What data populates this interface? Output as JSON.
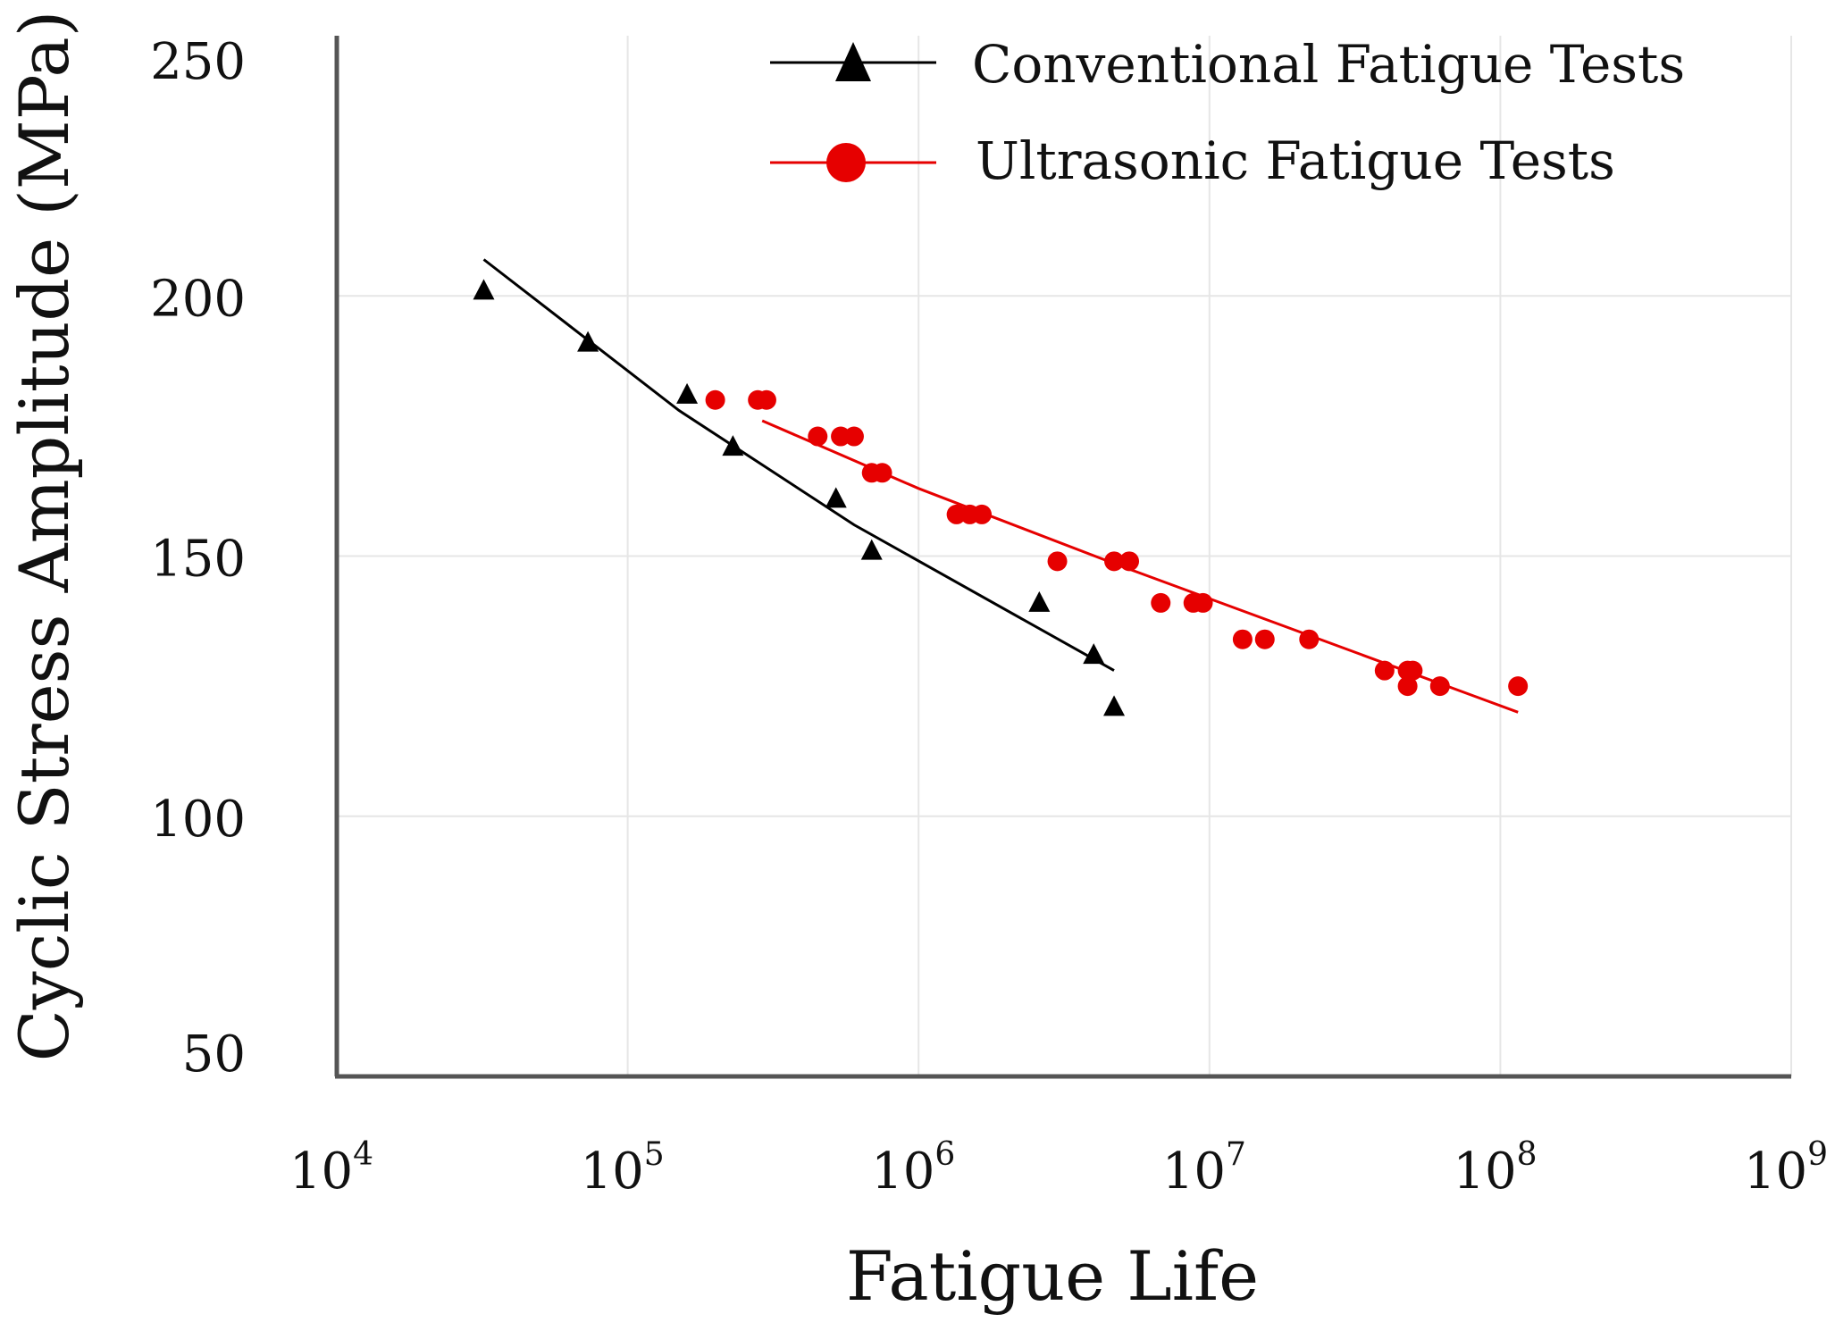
{
  "chart_data": {
    "type": "scatter",
    "title": "",
    "xlabel": "Fatigue Life",
    "ylabel": "Cyclic Stress Amplitude (MPa)",
    "x_scale": "log",
    "xlim": [
      10000,
      1000000000
    ],
    "ylim": [
      50,
      250
    ],
    "grid": true,
    "legend_position": "top-right",
    "x_ticks": [
      {
        "base": "10",
        "exp": "4"
      },
      {
        "base": "10",
        "exp": "5"
      },
      {
        "base": "10",
        "exp": "6"
      },
      {
        "base": "10",
        "exp": "7"
      },
      {
        "base": "10",
        "exp": "8"
      },
      {
        "base": "10",
        "exp": "9"
      }
    ],
    "y_ticks": [
      "50",
      "100",
      "150",
      "200",
      "250"
    ],
    "series": [
      {
        "name": "Conventional Fatigue Tests",
        "marker": "triangle",
        "color": "#000000",
        "points": [
          {
            "x": 32000,
            "y": 201
          },
          {
            "x": 73000,
            "y": 191
          },
          {
            "x": 160000,
            "y": 181
          },
          {
            "x": 230000,
            "y": 171
          },
          {
            "x": 520000,
            "y": 161
          },
          {
            "x": 690000,
            "y": 151
          },
          {
            "x": 2600000,
            "y": 141
          },
          {
            "x": 4000000,
            "y": 131
          },
          {
            "x": 4700000,
            "y": 121
          }
        ],
        "fit": [
          {
            "x": 32000,
            "y": 207
          },
          {
            "x": 150000,
            "y": 178
          },
          {
            "x": 600000,
            "y": 156
          },
          {
            "x": 4700000,
            "y": 128
          }
        ]
      },
      {
        "name": "Ultrasonic Fatigue Tests",
        "marker": "circle",
        "color": "#e60000",
        "points": [
          {
            "x": 200000,
            "y": 180
          },
          {
            "x": 280000,
            "y": 180
          },
          {
            "x": 300000,
            "y": 180
          },
          {
            "x": 450000,
            "y": 173
          },
          {
            "x": 540000,
            "y": 173
          },
          {
            "x": 600000,
            "y": 173
          },
          {
            "x": 690000,
            "y": 166
          },
          {
            "x": 750000,
            "y": 166
          },
          {
            "x": 1350000,
            "y": 158
          },
          {
            "x": 1500000,
            "y": 158
          },
          {
            "x": 1650000,
            "y": 158
          },
          {
            "x": 3000000,
            "y": 149
          },
          {
            "x": 4700000,
            "y": 149
          },
          {
            "x": 5300000,
            "y": 149
          },
          {
            "x": 6800000,
            "y": 141
          },
          {
            "x": 8800000,
            "y": 141
          },
          {
            "x": 9500000,
            "y": 141
          },
          {
            "x": 13000000,
            "y": 134
          },
          {
            "x": 15500000,
            "y": 134
          },
          {
            "x": 22000000,
            "y": 134
          },
          {
            "x": 40000000,
            "y": 128
          },
          {
            "x": 48000000,
            "y": 128
          },
          {
            "x": 50000000,
            "y": 128
          },
          {
            "x": 48000000,
            "y": 125
          },
          {
            "x": 62000000,
            "y": 125
          },
          {
            "x": 115000000,
            "y": 125
          }
        ],
        "fit": [
          {
            "x": 290000,
            "y": 176
          },
          {
            "x": 1000000,
            "y": 163
          },
          {
            "x": 5000000,
            "y": 148
          },
          {
            "x": 30000000,
            "y": 132
          },
          {
            "x": 115000000,
            "y": 120
          }
        ]
      }
    ]
  },
  "colors": {
    "axis": "#555555",
    "grid": "#e6e6e6",
    "conventional": "#000000",
    "ultrasonic": "#e60000"
  }
}
